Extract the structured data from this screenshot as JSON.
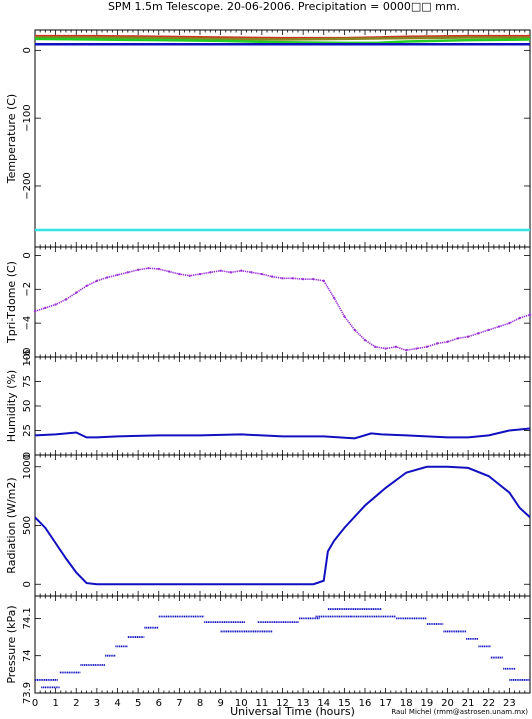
{
  "title": "SPM 1.5m Telescope. 20-06-2006. Precipitation = 0000□□ mm.",
  "credit": "Raul Michel (rmm@astrosen.unam.mx)",
  "colors": {
    "frame": "#000000",
    "series_blue": "#1010c0",
    "series_purple": "#9b30d8",
    "series_cyan": "#33e6e6",
    "series_green": "#22cc22",
    "series_red": "#cc3322",
    "series_olive": "#888822"
  },
  "chart_data": [
    {
      "type": "line",
      "ylabel": "Temperature (C)",
      "xlim": [
        0,
        24
      ],
      "ylim": [
        -290,
        30
      ],
      "yticks": [
        0,
        -100,
        -200
      ],
      "yticklabels": [
        "0",
        "−100",
        "−200"
      ],
      "series": [
        {
          "color": "#cc3322",
          "x": [
            0,
            3,
            6,
            9,
            12,
            15,
            18,
            21,
            24
          ],
          "y": [
            21,
            21,
            20,
            19,
            18,
            18,
            20,
            21,
            21
          ]
        },
        {
          "color": "#888822",
          "x": [
            0,
            3,
            6,
            9,
            12,
            15,
            18,
            21,
            24
          ],
          "y": [
            19,
            19,
            18,
            17,
            16,
            17,
            18,
            19,
            19
          ]
        },
        {
          "color": "#22cc22",
          "x": [
            0,
            3,
            6,
            9,
            12,
            15,
            16.5,
            18,
            21,
            24
          ],
          "y": [
            17,
            16,
            15,
            14,
            12,
            11,
            11,
            13,
            15,
            16
          ]
        },
        {
          "color": "#1010c0",
          "x": [
            0,
            24
          ],
          "y": [
            9,
            9
          ]
        },
        {
          "color": "#33e6e6",
          "x": [
            0,
            24
          ],
          "y": [
            -265,
            -265
          ]
        }
      ]
    },
    {
      "type": "scatter",
      "ylabel": "Tpri-Tdome (C)",
      "xlim": [
        0,
        24
      ],
      "ylim": [
        -6,
        0.5
      ],
      "yticks": [
        0,
        -2,
        -4,
        -6
      ],
      "yticklabels": [
        "0",
        "−2",
        "−4",
        "−6"
      ],
      "series": [
        {
          "color": "#9b30d8",
          "x": [
            0,
            0.5,
            1,
            1.5,
            2,
            2.5,
            3,
            3.5,
            4,
            4.5,
            5,
            5.5,
            6,
            6.5,
            7,
            7.5,
            8,
            8.5,
            9,
            9.5,
            10,
            10.5,
            11,
            11.5,
            12,
            12.5,
            13,
            13.5,
            14,
            14.5,
            15,
            15.5,
            16,
            16.5,
            17,
            17.5,
            18,
            18.5,
            19,
            19.5,
            20,
            20.5,
            21,
            21.5,
            22,
            22.5,
            23,
            23.5,
            24
          ],
          "y": [
            -3.3,
            -3.1,
            -2.9,
            -2.6,
            -2.2,
            -1.8,
            -1.5,
            -1.3,
            -1.15,
            -1.0,
            -0.85,
            -0.75,
            -0.8,
            -0.95,
            -1.1,
            -1.2,
            -1.1,
            -1.0,
            -0.9,
            -1.0,
            -0.9,
            -1.0,
            -1.1,
            -1.25,
            -1.35,
            -1.35,
            -1.4,
            -1.4,
            -1.5,
            -2.5,
            -3.6,
            -4.4,
            -5.0,
            -5.4,
            -5.5,
            -5.4,
            -5.6,
            -5.5,
            -5.4,
            -5.2,
            -5.1,
            -4.9,
            -4.8,
            -4.6,
            -4.4,
            -4.2,
            -4.0,
            -3.7,
            -3.5
          ]
        }
      ]
    },
    {
      "type": "line",
      "ylabel": "Humidity (%)",
      "xlim": [
        0,
        24
      ],
      "ylim": [
        0,
        100
      ],
      "yticks": [
        0,
        25,
        50,
        75,
        100
      ],
      "yticklabels": [
        "0",
        "25",
        "50",
        "75",
        "100"
      ],
      "series": [
        {
          "color": "#1010c0",
          "x": [
            0,
            1,
            2,
            2.5,
            3,
            4,
            6,
            8,
            10,
            12,
            14,
            15.5,
            16.3,
            16.8,
            18,
            20,
            21,
            22,
            23,
            24
          ],
          "y": [
            20,
            21,
            23,
            18,
            18,
            19,
            20,
            20,
            21,
            19,
            19,
            17,
            22,
            21,
            20,
            18,
            18,
            20,
            25,
            27
          ]
        }
      ]
    },
    {
      "type": "line",
      "ylabel": "Radiation (W/m2)",
      "xlim": [
        0,
        24
      ],
      "ylim": [
        -100,
        1100
      ],
      "yticks": [
        0,
        500,
        1000
      ],
      "yticklabels": [
        "0",
        "500",
        "1000"
      ],
      "series": [
        {
          "color": "#1010c0",
          "x": [
            0,
            0.5,
            1,
            1.5,
            2,
            2.5,
            3,
            6,
            9,
            12,
            13.5,
            14,
            14.2,
            14.5,
            15,
            16,
            17,
            18,
            19,
            20,
            21,
            22,
            22.5,
            23,
            23.5,
            24
          ],
          "y": [
            570,
            480,
            350,
            220,
            100,
            10,
            0,
            0,
            0,
            0,
            0,
            30,
            280,
            370,
            480,
            670,
            820,
            950,
            1000,
            1000,
            990,
            920,
            850,
            780,
            650,
            570
          ]
        }
      ]
    },
    {
      "type": "scatter",
      "ylabel": "Pressure (kPa)",
      "xlim": [
        0,
        24
      ],
      "ylim": [
        73.9,
        74.16
      ],
      "yticks": [
        73.9,
        74,
        74.1
      ],
      "yticklabels": [
        "73.9",
        "74",
        "74.1"
      ],
      "xticks": [
        0,
        1,
        2,
        3,
        4,
        5,
        6,
        7,
        8,
        9,
        10,
        11,
        12,
        13,
        14,
        15,
        16,
        17,
        18,
        19,
        20,
        21,
        22,
        23
      ],
      "xticklabels": [
        "0",
        "1",
        "2",
        "3",
        "4",
        "5",
        "6",
        "7",
        "8",
        "9",
        "10",
        "11",
        "12",
        "13",
        "14",
        "15",
        "16",
        "17",
        "18",
        "19",
        "20",
        "21",
        "22",
        "23"
      ],
      "xlabel": "Universal Time (hours)",
      "series": [
        {
          "color": "#1010c0",
          "segments": [
            [
              0,
              1.1,
              73.935
            ],
            [
              0.3,
              1.2,
              73.915
            ],
            [
              1.2,
              2.2,
              73.955
            ],
            [
              2.2,
              3.4,
              73.975
            ],
            [
              3.4,
              3.9,
              74.0
            ],
            [
              3.9,
              4.5,
              74.025
            ],
            [
              4.5,
              5.3,
              74.05
            ],
            [
              5.3,
              6.0,
              74.075
            ],
            [
              6.0,
              8.2,
              74.105
            ],
            [
              8.2,
              10.2,
              74.09
            ],
            [
              9.0,
              11.5,
              74.065
            ],
            [
              10.8,
              12.8,
              74.09
            ],
            [
              12.8,
              13.8,
              74.1
            ],
            [
              13.6,
              15.3,
              74.105
            ],
            [
              14.2,
              16.8,
              74.125
            ],
            [
              15.3,
              17.5,
              74.105
            ],
            [
              17.5,
              19.0,
              74.1
            ],
            [
              19.0,
              19.8,
              74.085
            ],
            [
              19.8,
              20.9,
              74.065
            ],
            [
              20.9,
              21.5,
              74.045
            ],
            [
              21.5,
              22.1,
              74.025
            ],
            [
              22.1,
              22.7,
              73.995
            ],
            [
              22.7,
              23.3,
              73.965
            ],
            [
              23.0,
              24.0,
              73.935
            ]
          ]
        }
      ]
    }
  ]
}
